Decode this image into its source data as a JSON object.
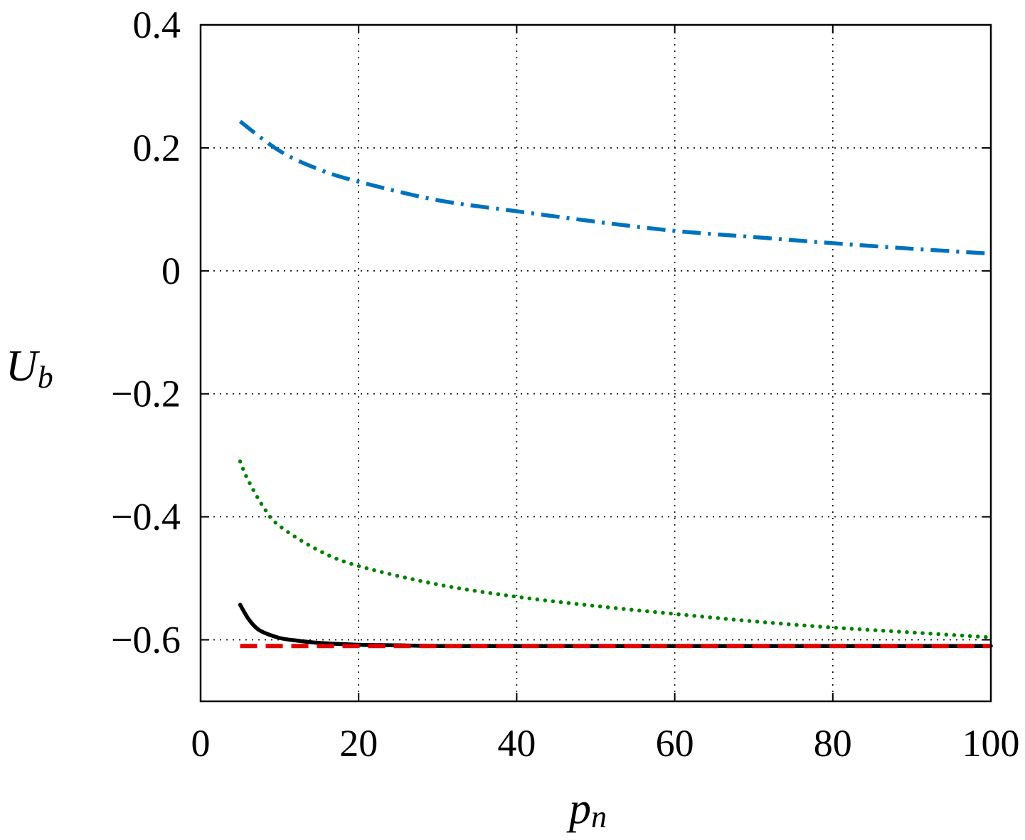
{
  "chart_data": {
    "type": "line",
    "title": "",
    "xlabel": "p",
    "xlabel_sub": "n",
    "ylabel": "U",
    "ylabel_sub": "b",
    "xlim": [
      0,
      100
    ],
    "ylim": [
      -0.7,
      0.4
    ],
    "xticks": [
      0,
      20,
      40,
      60,
      80,
      100
    ],
    "xtick_labels": [
      "0",
      "20",
      "40",
      "60",
      "80",
      "100"
    ],
    "yticks": [
      0.4,
      0.2,
      0,
      -0.2,
      -0.4,
      -0.6
    ],
    "ytick_labels": [
      "0.4",
      "0.2",
      "0",
      "−0.2",
      "−0.4",
      "−0.6"
    ],
    "grid": true,
    "legend": "none",
    "series": [
      {
        "style": "dashdot",
        "color": "#0072BD",
        "x": [
          5,
          10,
          15,
          20,
          30,
          40,
          50,
          60,
          70,
          80,
          90,
          100
        ],
        "y": [
          0.243,
          0.195,
          0.165,
          0.145,
          0.115,
          0.097,
          0.08,
          0.065,
          0.055,
          0.045,
          0.036,
          0.028
        ]
      },
      {
        "style": "dotted",
        "color": "#008000",
        "x": [
          5,
          6,
          8,
          10,
          15,
          20,
          30,
          40,
          50,
          60,
          70,
          80,
          90,
          100
        ],
        "y": [
          -0.31,
          -0.34,
          -0.385,
          -0.415,
          -0.455,
          -0.48,
          -0.51,
          -0.53,
          -0.545,
          -0.558,
          -0.57,
          -0.58,
          -0.588,
          -0.596
        ]
      },
      {
        "style": "solid",
        "color": "#000000",
        "x": [
          5,
          6,
          7,
          8,
          10,
          12,
          15,
          20,
          25,
          30,
          40,
          60,
          80,
          100
        ],
        "y": [
          -0.543,
          -0.565,
          -0.58,
          -0.588,
          -0.597,
          -0.601,
          -0.605,
          -0.608,
          -0.609,
          -0.61,
          -0.61,
          -0.61,
          -0.61,
          -0.61
        ]
      },
      {
        "style": "dashed",
        "color": "#E00000",
        "x": [
          5,
          100
        ],
        "y": [
          -0.61,
          -0.61
        ]
      }
    ]
  }
}
